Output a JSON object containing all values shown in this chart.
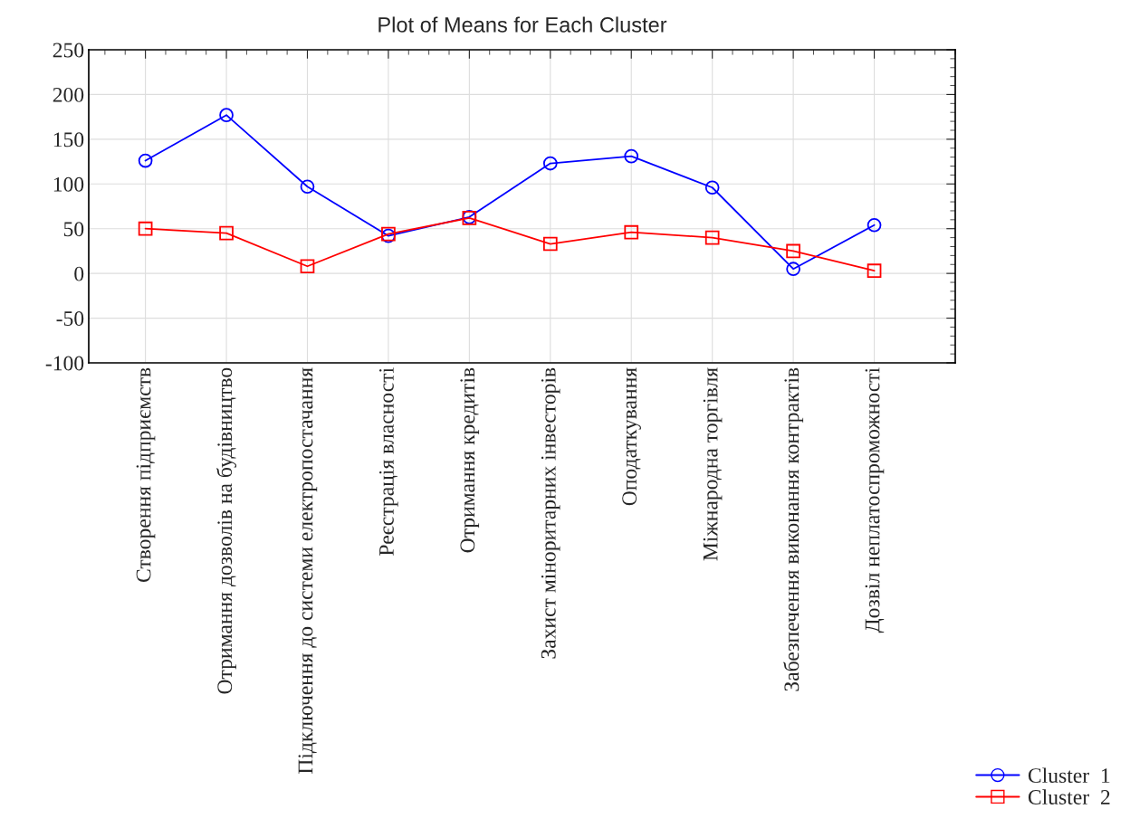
{
  "chart_data": {
    "type": "line",
    "title": "Plot of Means for Each Cluster",
    "categories": [
      "Створення підприємств",
      "Отримання дозволів на будівництво",
      "Підключення до системи електропостачання",
      "Реєстрація власності",
      "Отримання кредитів",
      "Захист міноритарних інвесторів",
      "Оподаткування",
      "Міжнародна торгівля",
      "Забезпечення виконання контрактів",
      "Дозвіл неплатоспроможності"
    ],
    "series": [
      {
        "name": "Cluster  1",
        "color": "#0000ff",
        "marker": "circle",
        "values": [
          126,
          177,
          97,
          42,
          63,
          123,
          131,
          96,
          5,
          54
        ]
      },
      {
        "name": "Cluster  2",
        "color": "#ff0000",
        "marker": "square",
        "values": [
          50,
          45,
          8,
          44,
          62,
          33,
          46,
          40,
          25,
          3
        ]
      }
    ],
    "ylim": [
      -100,
      250
    ],
    "yticks": [
      -100,
      -50,
      0,
      50,
      100,
      150,
      200,
      250
    ],
    "grid": true,
    "legend": "bottom right",
    "line_style": "solid"
  }
}
